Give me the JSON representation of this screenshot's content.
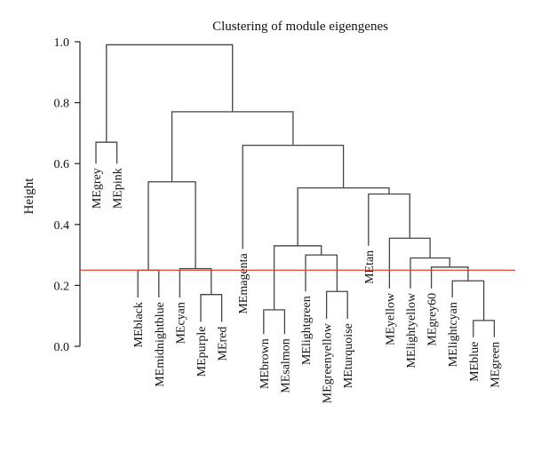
{
  "chart_data": {
    "type": "dendrogram",
    "title": "Clustering of module eigengenes",
    "ylabel": "Height",
    "xlabel": "",
    "ylim": [
      0.0,
      1.0
    ],
    "yticks": [
      "0.0",
      "0.2",
      "0.4",
      "0.6",
      "0.8",
      "1.0"
    ],
    "cut_height": 0.25,
    "cut_color": "#e0402e",
    "line_color": "#444444",
    "leaves": [
      {
        "id": "grey",
        "label": "MEgrey",
        "height": 0.6
      },
      {
        "id": "pink",
        "label": "MEpink",
        "height": 0.6
      },
      {
        "id": "black",
        "label": "MEblack",
        "height": 0.16
      },
      {
        "id": "midnightblue",
        "label": "MEmidnightblue",
        "height": 0.16
      },
      {
        "id": "cyan",
        "label": "MEcyan",
        "height": 0.16
      },
      {
        "id": "purple",
        "label": "MEpurple",
        "height": 0.08
      },
      {
        "id": "red",
        "label": "MEred",
        "height": 0.08
      },
      {
        "id": "magenta",
        "label": "MEmagenta",
        "height": 0.32
      },
      {
        "id": "brown",
        "label": "MEbrown",
        "height": 0.04
      },
      {
        "id": "salmon",
        "label": "MEsalmon",
        "height": 0.04
      },
      {
        "id": "lightgreen",
        "label": "MElightgreen",
        "height": 0.18
      },
      {
        "id": "greenyellow",
        "label": "MEgreenyellow",
        "height": 0.09
      },
      {
        "id": "turquoise",
        "label": "MEturquoise",
        "height": 0.09
      },
      {
        "id": "tan",
        "label": "MEtan",
        "height": 0.33
      },
      {
        "id": "yellow",
        "label": "MEyellow",
        "height": 0.19
      },
      {
        "id": "lightyellow",
        "label": "MElightyellow",
        "height": 0.19
      },
      {
        "id": "grey60",
        "label": "MEgrey60",
        "height": 0.19
      },
      {
        "id": "lightcyan",
        "label": "MElightcyan",
        "height": 0.16
      },
      {
        "id": "blue",
        "label": "MEblue",
        "height": 0.03
      },
      {
        "id": "green",
        "label": "MEgreen",
        "height": 0.03
      }
    ],
    "merges": [
      {
        "id": "c1",
        "left": "grey",
        "right": "pink",
        "height": 0.67
      },
      {
        "id": "c2",
        "left": "black",
        "right": "midnightblue",
        "height": 0.25
      },
      {
        "id": "c3",
        "left": "purple",
        "right": "red",
        "height": 0.17
      },
      {
        "id": "c4",
        "left": "cyan",
        "right": "c3",
        "height": 0.255
      },
      {
        "id": "c5",
        "left": "c2",
        "right": "c4",
        "height": 0.54
      },
      {
        "id": "c6",
        "left": "brown",
        "right": "salmon",
        "height": 0.12
      },
      {
        "id": "c7",
        "left": "greenyellow",
        "right": "turquoise",
        "height": 0.18
      },
      {
        "id": "c8",
        "left": "lightgreen",
        "right": "c7",
        "height": 0.3
      },
      {
        "id": "c9",
        "left": "c6",
        "right": "c8",
        "height": 0.33
      },
      {
        "id": "c10",
        "left": "blue",
        "right": "green",
        "height": 0.085
      },
      {
        "id": "c11",
        "left": "lightcyan",
        "right": "c10",
        "height": 0.215
      },
      {
        "id": "c12",
        "left": "grey60",
        "right": "c11",
        "height": 0.26
      },
      {
        "id": "c13",
        "left": "lightyellow",
        "right": "c12",
        "height": 0.29
      },
      {
        "id": "c14",
        "left": "yellow",
        "right": "c13",
        "height": 0.355
      },
      {
        "id": "c15",
        "left": "tan",
        "right": "c14",
        "height": 0.5
      },
      {
        "id": "c16",
        "left": "c9",
        "right": "c15",
        "height": 0.52
      },
      {
        "id": "c17",
        "left": "magenta",
        "right": "c16",
        "height": 0.66
      },
      {
        "id": "c18",
        "left": "c5",
        "right": "c17",
        "height": 0.77
      },
      {
        "id": "c19",
        "left": "c1",
        "right": "c18",
        "height": 0.99
      }
    ]
  }
}
